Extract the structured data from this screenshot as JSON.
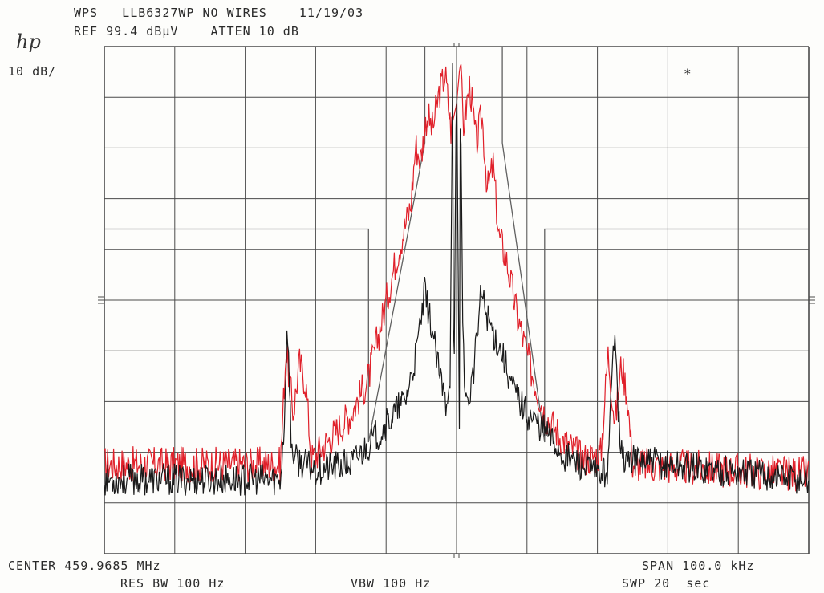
{
  "header": {
    "logo": "hp",
    "line1": "WPS   LLB6327WP NO WIRES    11/19/03",
    "line2": "REF 99.4 dBµV    ATTEN 10 dB",
    "scale": "10 dB/",
    "marker": "*"
  },
  "footer": {
    "center": "CENTER 459.9685 MHz",
    "span": "SPAN 100.0 kHz",
    "res_bw": "RES BW 100 Hz",
    "vbw": "VBW 100 Hz",
    "swp": "SWP 20  sec"
  },
  "colors": {
    "grid": "#4a4a4a",
    "red_trace": "#e0202a",
    "black_trace": "#1a1a1a",
    "mask": "#606060"
  },
  "chart_data": {
    "type": "line",
    "x_unit": "kHz offset from center",
    "y_unit": "dBµV",
    "xlim": [
      -50,
      50
    ],
    "ylim": [
      -0.6,
      99.4
    ],
    "grid": true,
    "mask": [
      [
        -50,
        63.4
      ],
      [
        -12.5,
        63.4
      ],
      [
        -12.5,
        21.4
      ],
      [
        -4.5,
        80.4
      ],
      [
        -4.5,
        99.4
      ],
      [
        6.5,
        99.4
      ],
      [
        6.5,
        80.4
      ],
      [
        12.5,
        21.4
      ],
      [
        12.5,
        63.4
      ],
      [
        50,
        63.4
      ]
    ],
    "series": [
      {
        "color": "#e0202a",
        "x": [
          -50,
          -25,
          -24.2,
          -23.2,
          -22.3,
          -21.4,
          -20.6,
          -18,
          -15,
          -12.5,
          -10.5,
          -8.5,
          -6.5,
          -5.8,
          -5.1,
          -4.2,
          -3.4,
          -2.5,
          -1.6,
          -0.8,
          0,
          0.5,
          1,
          1.9,
          2.8,
          3.6,
          4.4,
          5.2,
          6,
          7,
          8.5,
          10.5,
          12.5,
          15,
          18,
          20.5,
          21.5,
          22.5,
          23.4,
          24.2,
          25,
          50
        ],
        "y": [
          17,
          17,
          40,
          27,
          37,
          33,
          18,
          22,
          27,
          34,
          46,
          58,
          68,
          80,
          77,
          86,
          83,
          90,
          94,
          83,
          88,
          96,
          84,
          92,
          80,
          86,
          71,
          76,
          62,
          58,
          47,
          36,
          27,
          22,
          18,
          19,
          39,
          25,
          37,
          31,
          17,
          15
        ]
      },
      {
        "color": "#1a1a1a",
        "x": [
          -50,
          -25,
          -24.5,
          -24,
          -23.5,
          -23,
          -20,
          -15,
          -10.5,
          -7.2,
          -5.8,
          -4.5,
          -3.5,
          -2.5,
          -1.5,
          -0.9,
          -0.55,
          -0.4,
          0,
          0.4,
          0.55,
          0.9,
          1.5,
          2.5,
          3.5,
          4.2,
          5.5,
          6.5,
          8,
          10,
          12.5,
          15,
          20,
          21.5,
          22,
          22.5,
          23,
          23.5,
          50
        ],
        "y": [
          14,
          14,
          24,
          45,
          22,
          18,
          16,
          17,
          24,
          30,
          38,
          51,
          44,
          35,
          29,
          35,
          98,
          24,
          98,
          24,
          98,
          40,
          28,
          36,
          51,
          47,
          42,
          39,
          32,
          27,
          24,
          19,
          15,
          16,
          32,
          46,
          27,
          18,
          14
        ]
      }
    ]
  }
}
